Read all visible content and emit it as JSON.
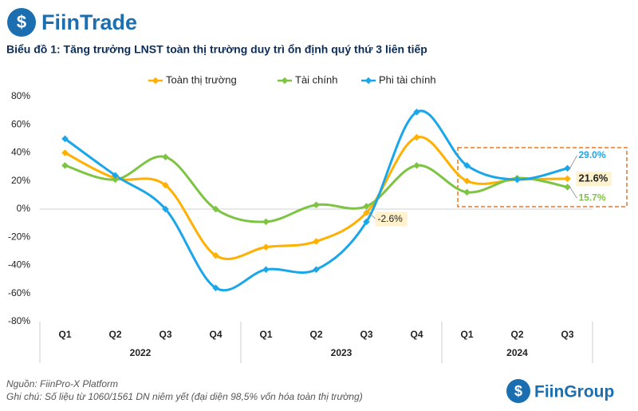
{
  "header": {
    "logo": "FiinTrade"
  },
  "chart_data": {
    "type": "line",
    "title": "Biểu đồ 1: Tăng trưởng LNST toàn thị trường duy trì ổn định quý thứ 3 liên tiếp",
    "groups": [
      {
        "name": "2022",
        "categories": [
          "Q1",
          "Q2",
          "Q3",
          "Q4"
        ]
      },
      {
        "name": "2023",
        "categories": [
          "Q1",
          "Q2",
          "Q3",
          "Q4"
        ]
      },
      {
        "name": "2024",
        "categories": [
          "Q1",
          "Q2",
          "Q3"
        ]
      }
    ],
    "series": [
      {
        "name": "Toàn thị trường",
        "color": "#FFB000",
        "values": [
          40,
          22,
          17,
          -33,
          -27,
          -23,
          -2.6,
          51,
          20,
          21,
          21.6
        ],
        "value_labels": [
          null,
          null,
          null,
          null,
          null,
          null,
          "-2.6%",
          null,
          null,
          null,
          "21.6%"
        ]
      },
      {
        "name": "Tài chính",
        "color": "#7DC443",
        "values": [
          31,
          21,
          37,
          0,
          -9,
          3,
          2,
          31,
          12,
          22,
          15.7
        ],
        "value_labels": [
          null,
          null,
          null,
          null,
          null,
          null,
          null,
          null,
          null,
          null,
          "15.7%"
        ]
      },
      {
        "name": "Phi tài chính",
        "color": "#1AA6E8",
        "values": [
          50,
          24,
          0,
          -56,
          -43,
          -43,
          -9,
          69,
          31,
          21,
          29.0
        ],
        "value_labels": [
          null,
          null,
          null,
          null,
          null,
          null,
          null,
          null,
          null,
          null,
          "29.0%"
        ]
      }
    ],
    "ylim": [
      -80,
      80
    ],
    "yticks": [
      {
        "value": -80,
        "label": "-80%"
      },
      {
        "value": -60,
        "label": "-60%"
      },
      {
        "value": -40,
        "label": "-40%"
      },
      {
        "value": -20,
        "label": "-20%"
      },
      {
        "value": 0,
        "label": "0%"
      },
      {
        "value": 20,
        "label": "20%"
      },
      {
        "value": 40,
        "label": "40%"
      },
      {
        "value": 60,
        "label": "60%"
      },
      {
        "value": 80,
        "label": "80%"
      }
    ],
    "legend": "top"
  },
  "footer": {
    "source": "Nguồn: FiinPro-X Platform",
    "note": "Ghi chú: Số liệu từ 1060/1561 DN niêm yết (đại diện 98,5% vốn hóa toàn thị trường)",
    "logo": "FiinGroup"
  }
}
